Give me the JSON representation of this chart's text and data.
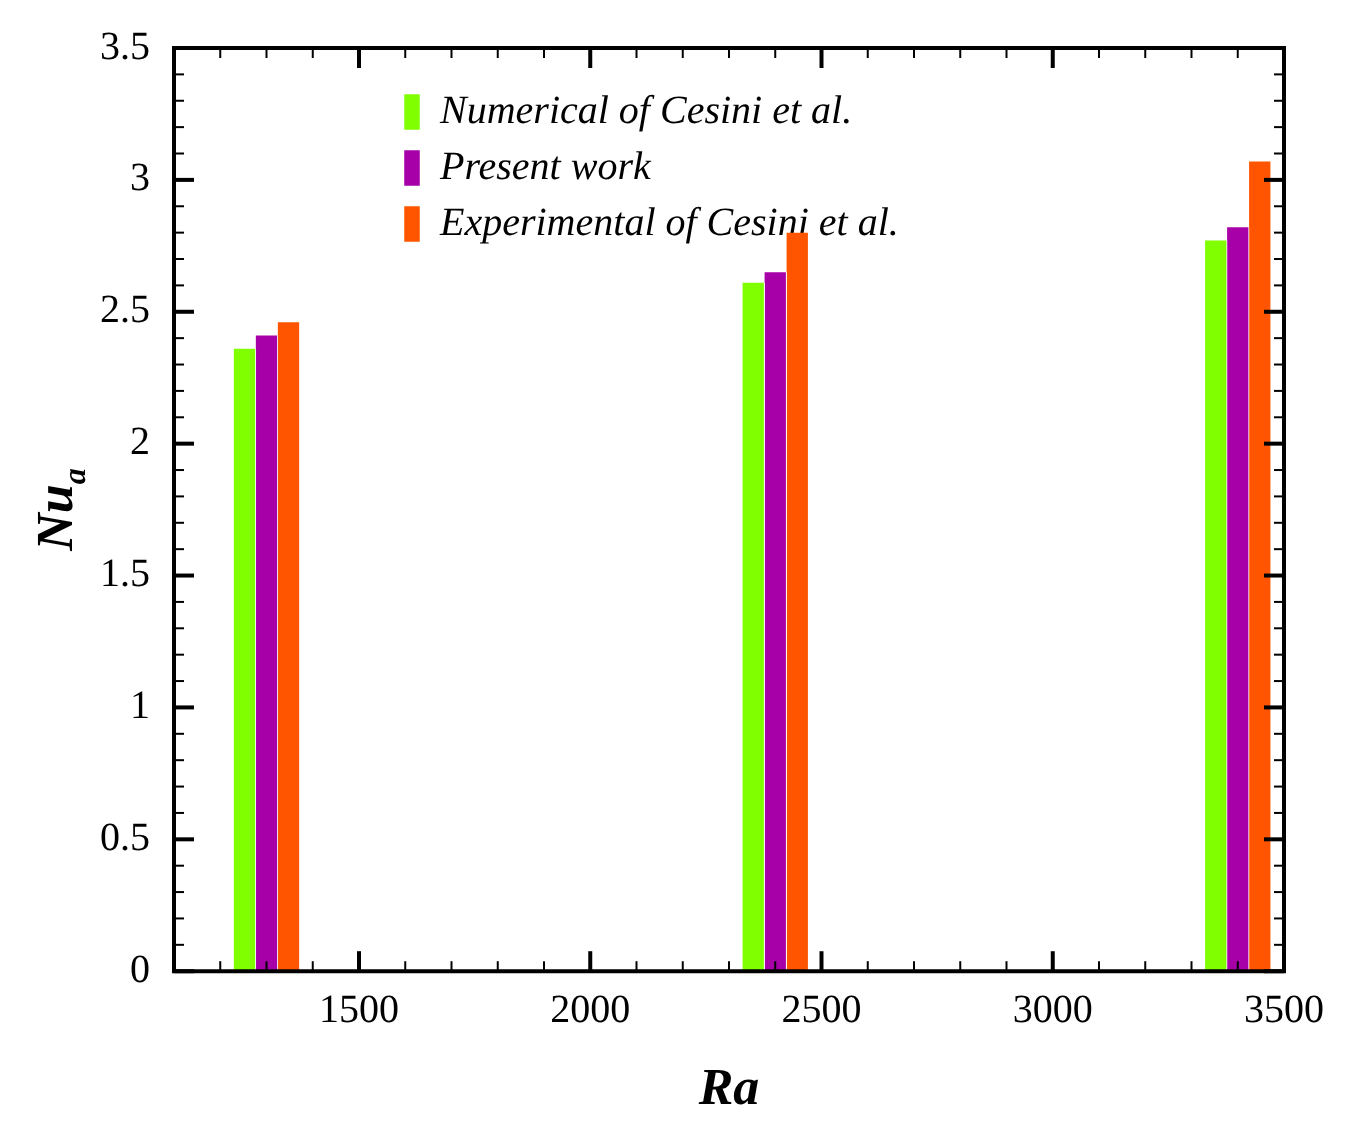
{
  "chart_data": {
    "type": "bar",
    "xlabel": "Ra",
    "ylabel": "Nu$_{a}$",
    "x": [
      1300,
      2400,
      3400
    ],
    "series": [
      {
        "name": "Numerical of Cesini et al.",
        "color": "#80ff00",
        "values": [
          2.36,
          2.61,
          2.77
        ]
      },
      {
        "name": "Present work",
        "color": "#a800a8",
        "values": [
          2.41,
          2.65,
          2.82
        ]
      },
      {
        "name": "Experimental of Cesini et al.",
        "color": "#ff5500",
        "values": [
          2.46,
          2.8,
          3.07
        ]
      }
    ],
    "xlim": [
      1100,
      3500
    ],
    "xticks": [
      1500,
      2000,
      2500,
      3000,
      3500
    ],
    "ylim": [
      0,
      3.5
    ],
    "yticks": [
      0,
      0.5,
      1,
      1.5,
      2,
      2.5,
      3,
      3.5
    ],
    "legend": "top left"
  }
}
